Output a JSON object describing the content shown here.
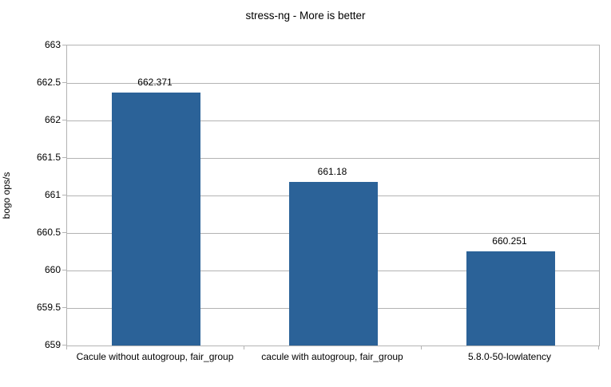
{
  "chart_data": {
    "type": "bar",
    "title": "stress-ng - More is better",
    "xlabel": "",
    "ylabel": "bogo ops/s",
    "categories": [
      "Cacule without autogroup, fair_group",
      "cacule with autogroup, fair_group",
      "5.8.0-50-lowlatency"
    ],
    "values": [
      662.371,
      661.18,
      660.251
    ],
    "value_labels": [
      "662.371",
      "661.18",
      "660.251"
    ],
    "ylim": [
      659,
      663
    ],
    "yticks": [
      659,
      659.5,
      660,
      660.5,
      661,
      661.5,
      662,
      662.5,
      663
    ],
    "grid": true,
    "legend": "none",
    "colors": {
      "bar": "#2b6298",
      "grid": "#b3b3b3",
      "axis": "#b3b3b3",
      "text": "#000000",
      "background": "#ffffff"
    }
  }
}
